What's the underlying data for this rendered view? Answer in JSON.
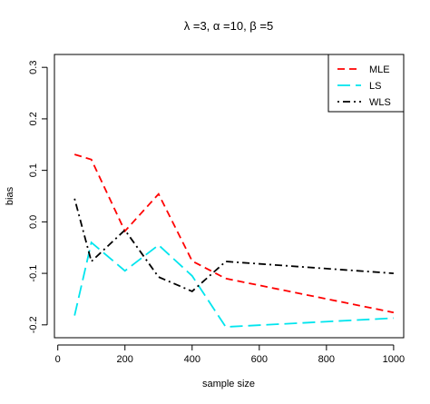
{
  "chart_data": {
    "type": "line",
    "title": "λ =3, α =10, β =5",
    "xlabel": "sample size",
    "ylabel": "bias",
    "xlim": [
      -10,
      1030
    ],
    "ylim": [
      -0.225,
      0.325
    ],
    "xticks": [
      0,
      200,
      400,
      600,
      800,
      1000
    ],
    "xtick_labels": [
      "0",
      "200",
      "400",
      "600",
      "800",
      "1000"
    ],
    "yticks": [
      -0.2,
      -0.1,
      0.0,
      0.1,
      0.2,
      0.3
    ],
    "ytick_labels": [
      "-0.2",
      "-0.1",
      "0.0",
      "0.1",
      "0.2",
      "0.3"
    ],
    "grid": false,
    "legend_position": "top-right",
    "x": [
      50,
      100,
      200,
      300,
      400,
      500,
      1000
    ],
    "series": [
      {
        "name": "MLE",
        "color": "#ff0000",
        "dash": "dashed",
        "values": [
          0.131,
          0.121,
          -0.018,
          0.054,
          -0.076,
          -0.11,
          -0.176
        ]
      },
      {
        "name": "LS",
        "color": "#00e5ee",
        "dash": "longdash",
        "values": [
          -0.182,
          -0.04,
          -0.095,
          -0.045,
          -0.105,
          -0.204,
          -0.187
        ]
      },
      {
        "name": "WLS",
        "color": "#000000",
        "dash": "dotdash",
        "values": [
          0.045,
          -0.077,
          -0.016,
          -0.107,
          -0.135,
          -0.077,
          -0.1
        ]
      }
    ]
  }
}
